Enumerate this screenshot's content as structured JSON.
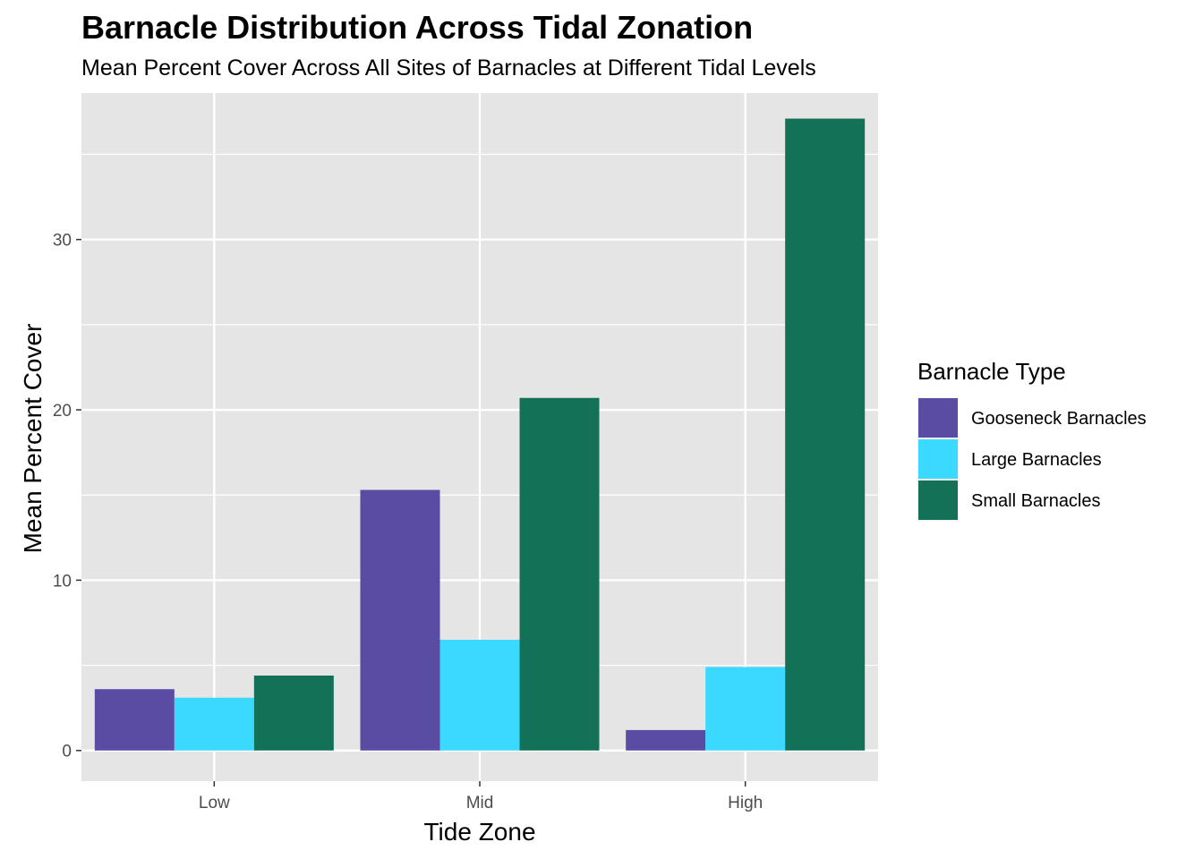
{
  "chart_data": {
    "type": "bar",
    "title": "Barnacle Distribution Across Tidal Zonation",
    "subtitle": "Mean Percent Cover Across All Sites of Barnacles at Different Tidal Levels",
    "xlabel": "Tide Zone",
    "ylabel": "Mean Percent Cover",
    "categories": [
      "Low",
      "Mid",
      "High"
    ],
    "ylim": [
      -1.8,
      38.6
    ],
    "yticks": [
      0,
      10,
      20,
      30
    ],
    "grid": true,
    "legend_title": "Barnacle Type",
    "legend_position": "right",
    "series": [
      {
        "name": "Gooseneck Barnacles",
        "color": "#5a4ca2",
        "values": [
          3.6,
          15.3,
          1.2
        ]
      },
      {
        "name": "Large Barnacles",
        "color": "#3bd8ff",
        "values": [
          3.1,
          6.5,
          4.9
        ]
      },
      {
        "name": "Small Barnacles",
        "color": "#137157",
        "values": [
          4.4,
          20.7,
          37.1
        ]
      }
    ]
  }
}
